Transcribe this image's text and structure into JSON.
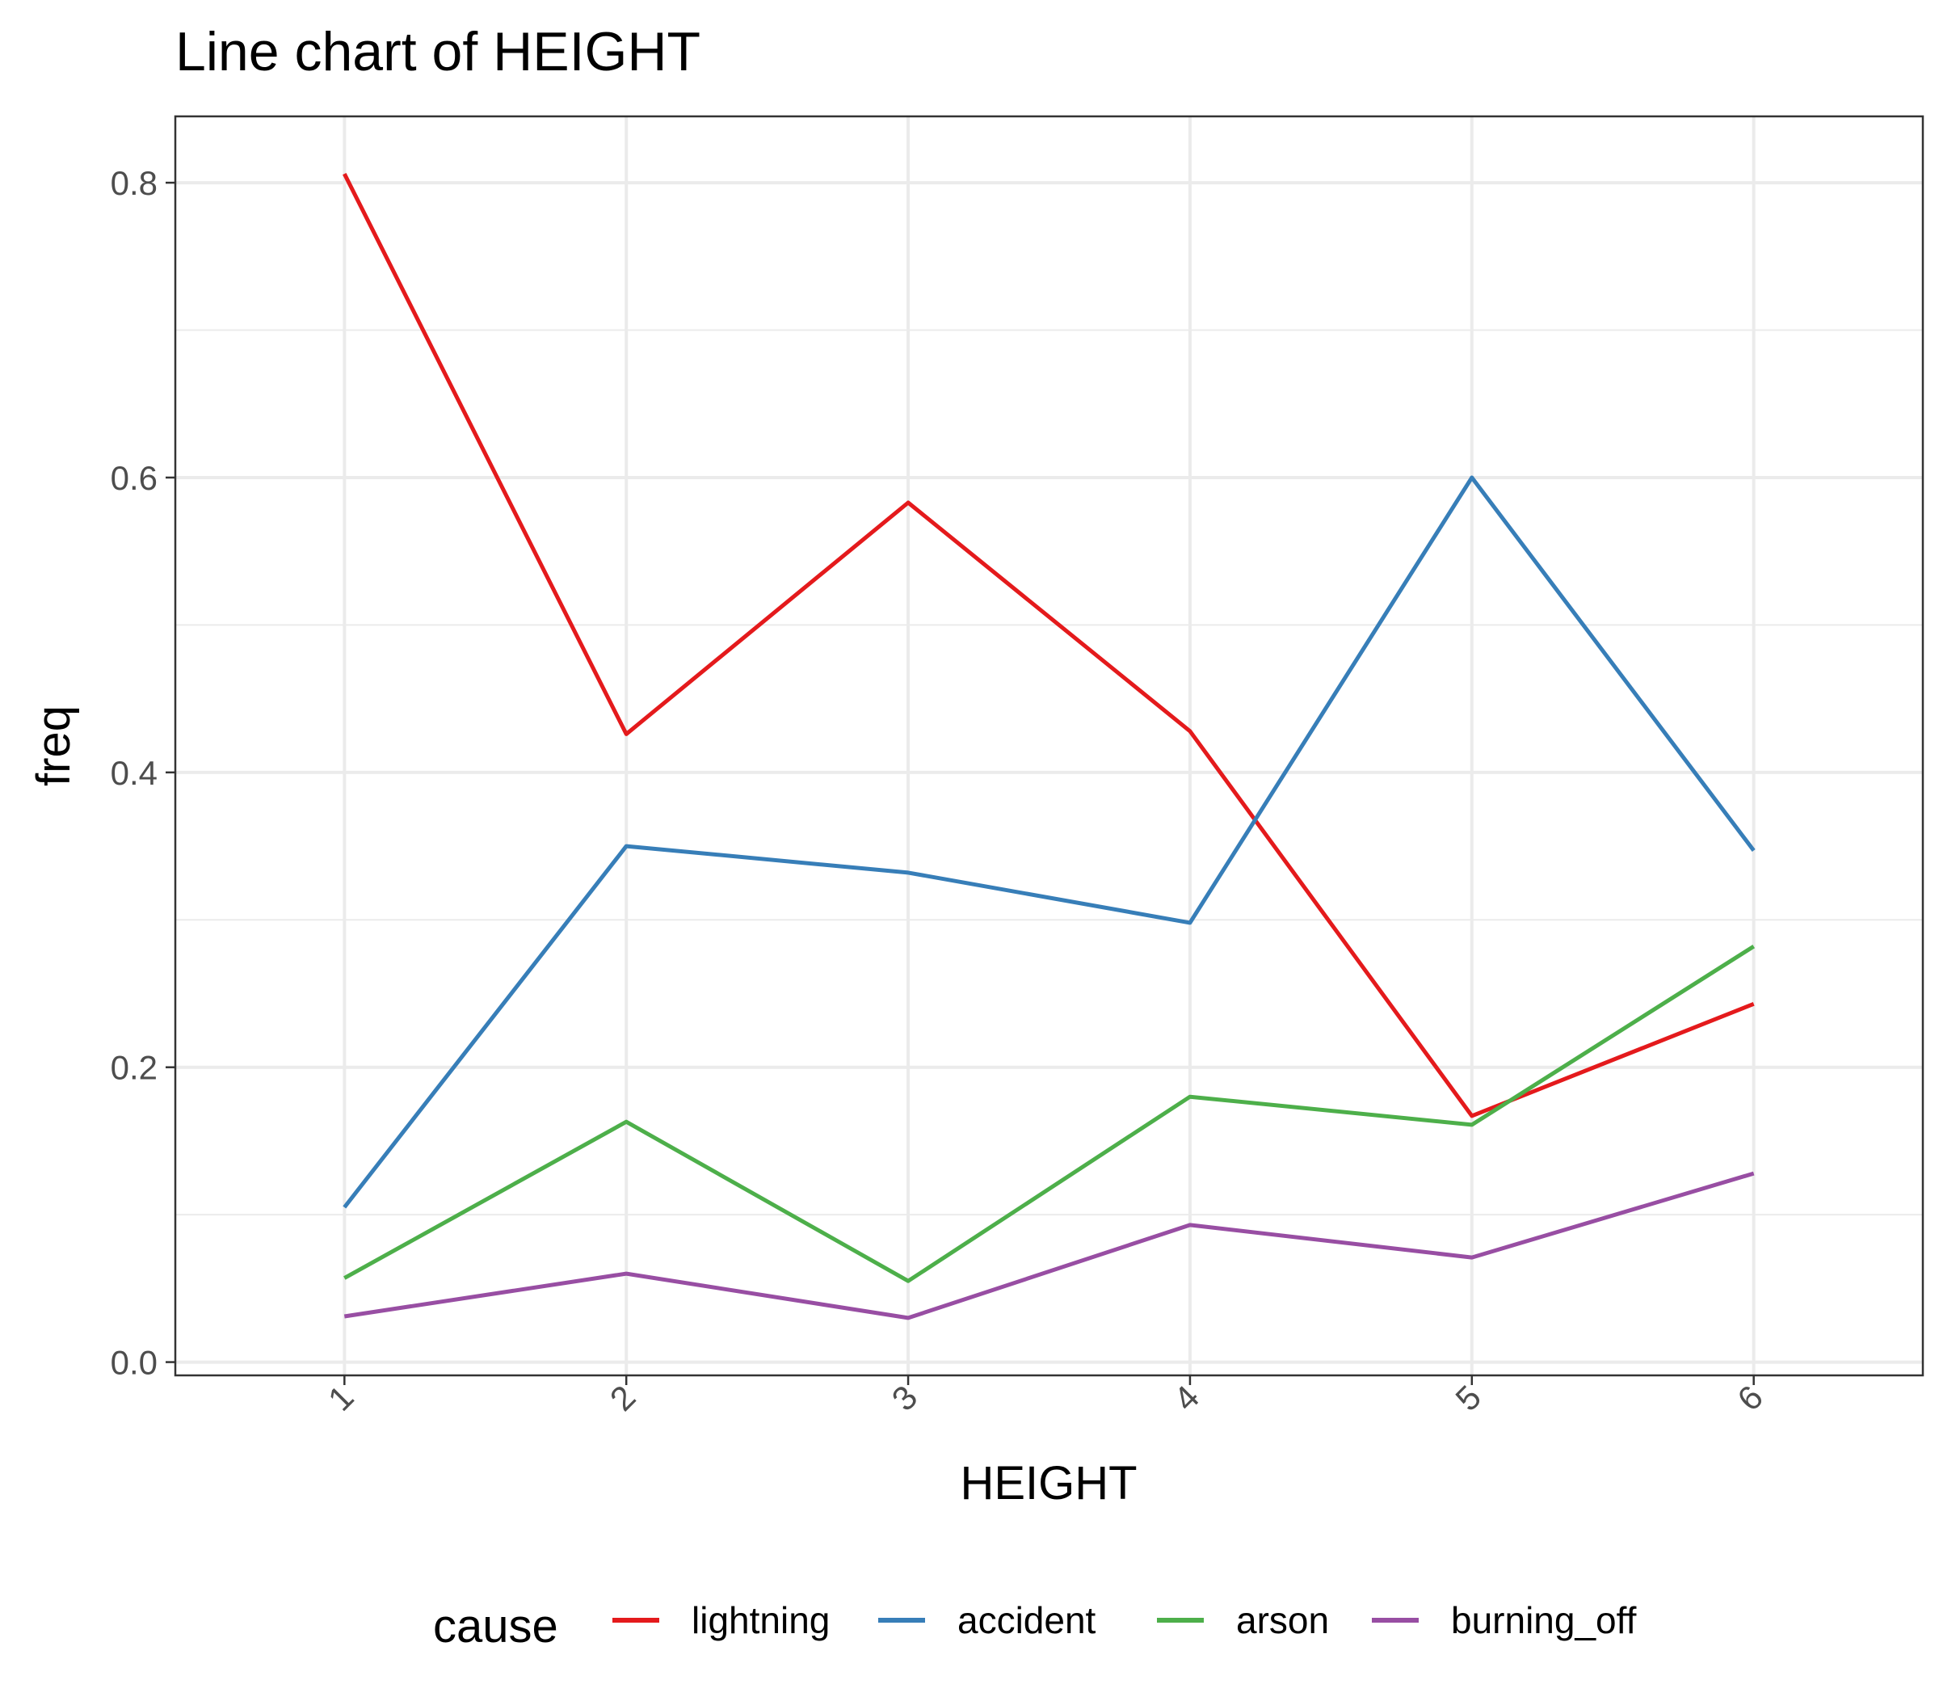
{
  "chart_data": {
    "type": "line",
    "title": "Line chart of HEIGHT",
    "xlabel": "HEIGHT",
    "ylabel": "freq",
    "x": [
      1,
      2,
      3,
      4,
      5,
      6
    ],
    "x_tick_labels": [
      "1",
      "2",
      "3",
      "4",
      "5",
      "6"
    ],
    "y_tick_labels": [
      "0.0",
      "0.2",
      "0.4",
      "0.6",
      "0.8"
    ],
    "y_ticks": [
      0.0,
      0.2,
      0.4,
      0.6,
      0.8
    ],
    "xlim": [
      0.4,
      6.6
    ],
    "ylim": [
      -0.009,
      0.845
    ],
    "grid": true,
    "legend": {
      "title": "cause",
      "position": "bottom"
    },
    "series": [
      {
        "name": "lightning",
        "color": "#E41A1C",
        "values": [
          0.806,
          0.426,
          0.583,
          0.428,
          0.167,
          0.243
        ]
      },
      {
        "name": "accident",
        "color": "#377EB8",
        "values": [
          0.105,
          0.35,
          0.332,
          0.298,
          0.6,
          0.347
        ]
      },
      {
        "name": "arson",
        "color": "#4DAF4A",
        "values": [
          0.057,
          0.163,
          0.055,
          0.18,
          0.161,
          0.282
        ]
      },
      {
        "name": "burning_off",
        "color": "#984EA3",
        "values": [
          0.031,
          0.06,
          0.03,
          0.093,
          0.071,
          0.128
        ]
      }
    ]
  }
}
